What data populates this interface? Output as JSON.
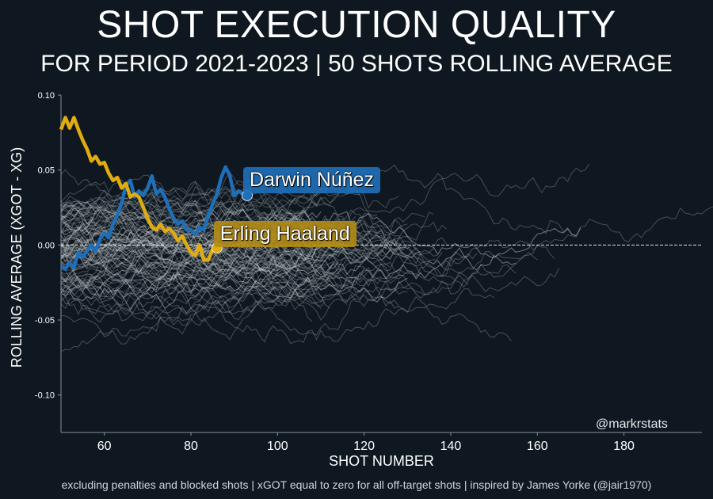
{
  "title": "SHOT EXECUTION QUALITY",
  "subtitle": "FOR PERIOD 2021-2023 | 50 SHOTS ROLLING AVERAGE",
  "footer": "excluding penalties and blocked shots | xGOT equal to zero for all off-target shots | inspired by James Yorke (@jair1970)",
  "credit": "@markrstats",
  "colors": {
    "background": "#0f1820",
    "nunez": "#1f6fb8",
    "haaland": "#e0ac10",
    "others": "#c8cdd2"
  },
  "chart_data": {
    "type": "line",
    "xlabel": "SHOT NUMBER",
    "ylabel": "ROLLING AVERAGE (XGOT - XG)",
    "xlim": [
      50,
      198
    ],
    "ylim": [
      -0.125,
      0.1
    ],
    "xticks": [
      "60",
      "80",
      "100",
      "120",
      "140",
      "160",
      "180"
    ],
    "yticks": [
      "0.10",
      "0.05",
      "0.00",
      "-0.05",
      "-0.10"
    ],
    "reference_line": 0,
    "highlight_series": [
      {
        "name": "Darwin Núñez",
        "x": [
          50,
          51,
          52,
          53,
          54,
          55,
          56,
          57,
          58,
          59,
          60,
          61,
          62,
          63,
          64,
          65,
          66,
          67,
          68,
          69,
          70,
          71,
          72,
          73,
          74,
          75,
          76,
          77,
          78,
          79,
          80,
          81,
          82,
          83,
          84,
          85,
          86,
          87,
          88,
          89,
          90,
          91,
          92,
          93
        ],
        "values": [
          -0.014,
          -0.016,
          -0.012,
          -0.015,
          -0.005,
          -0.008,
          -0.004,
          0.0,
          -0.004,
          0.004,
          0.008,
          0.005,
          0.014,
          0.02,
          0.028,
          0.04,
          0.043,
          0.032,
          0.036,
          0.033,
          0.038,
          0.046,
          0.034,
          0.037,
          0.032,
          0.024,
          0.018,
          0.014,
          0.016,
          0.01,
          0.01,
          0.007,
          0.012,
          0.01,
          0.02,
          0.027,
          0.034,
          0.045,
          0.052,
          0.046,
          0.033,
          0.036,
          0.034,
          0.033
        ]
      },
      {
        "name": "Erling Haaland",
        "x": [
          50,
          51,
          52,
          53,
          54,
          55,
          56,
          57,
          58,
          59,
          60,
          61,
          62,
          63,
          64,
          65,
          66,
          67,
          68,
          69,
          70,
          71,
          72,
          73,
          74,
          75,
          76,
          77,
          78,
          79,
          80,
          81,
          82,
          83,
          84,
          85,
          86
        ],
        "values": [
          0.077,
          0.085,
          0.078,
          0.085,
          0.077,
          0.07,
          0.064,
          0.056,
          0.059,
          0.054,
          0.055,
          0.048,
          0.043,
          0.045,
          0.038,
          0.041,
          0.032,
          0.034,
          0.032,
          0.025,
          0.018,
          0.012,
          0.01,
          0.014,
          0.009,
          0.011,
          0.008,
          0.003,
          0.006,
          0.0,
          -0.005,
          -0.007,
          0.0,
          -0.01,
          -0.01,
          -0.003,
          -0.002
        ]
      }
    ],
    "background_series_count": 110,
    "annotations": [
      "Darwin Núñez",
      "Erling Haaland"
    ]
  }
}
